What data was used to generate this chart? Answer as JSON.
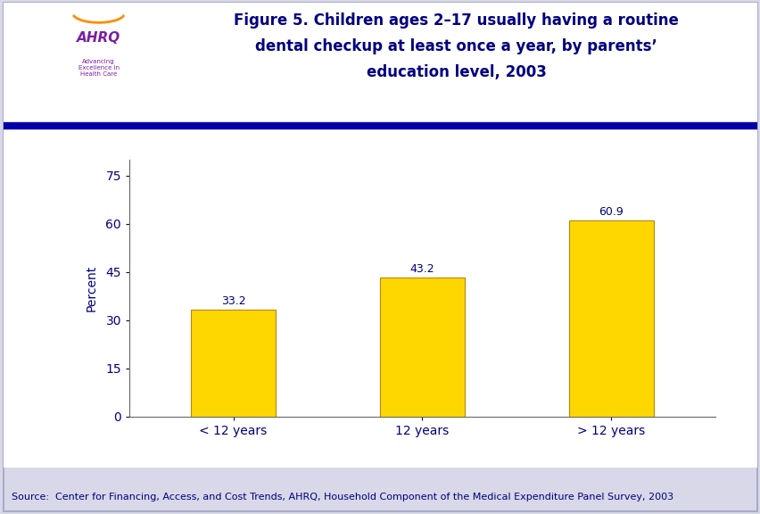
{
  "categories": [
    "< 12 years",
    "12 years",
    "> 12 years"
  ],
  "values": [
    33.2,
    43.2,
    60.9
  ],
  "bar_color": "#FFD700",
  "bar_edgecolor": "#B8860B",
  "title_line1": "Figure 5. Children ages 2–17 usually having a routine",
  "title_line2": "dental checkup at least once a year, by parents’",
  "title_line3": "education level, 2003",
  "ylabel": "Percent",
  "yticks": [
    0,
    15,
    30,
    45,
    60,
    75
  ],
  "ylim": [
    0,
    80
  ],
  "source_text": "Source:  Center for Financing, Access, and Cost Trends, AHRQ, Household Component of the Medical Expenditure Panel Survey, 2003",
  "title_color": "#000080",
  "label_color": "#000080",
  "axis_label_color": "#000080",
  "tick_label_color": "#000080",
  "source_color": "#000080",
  "background_color": "#FFFFFF",
  "outer_bg_color": "#D8D8E8",
  "bar_label_fontsize": 9,
  "title_fontsize": 12,
  "tick_fontsize": 10,
  "ylabel_fontsize": 10,
  "source_fontsize": 8,
  "header_line_color": "#0000AA",
  "bar_width": 0.45
}
